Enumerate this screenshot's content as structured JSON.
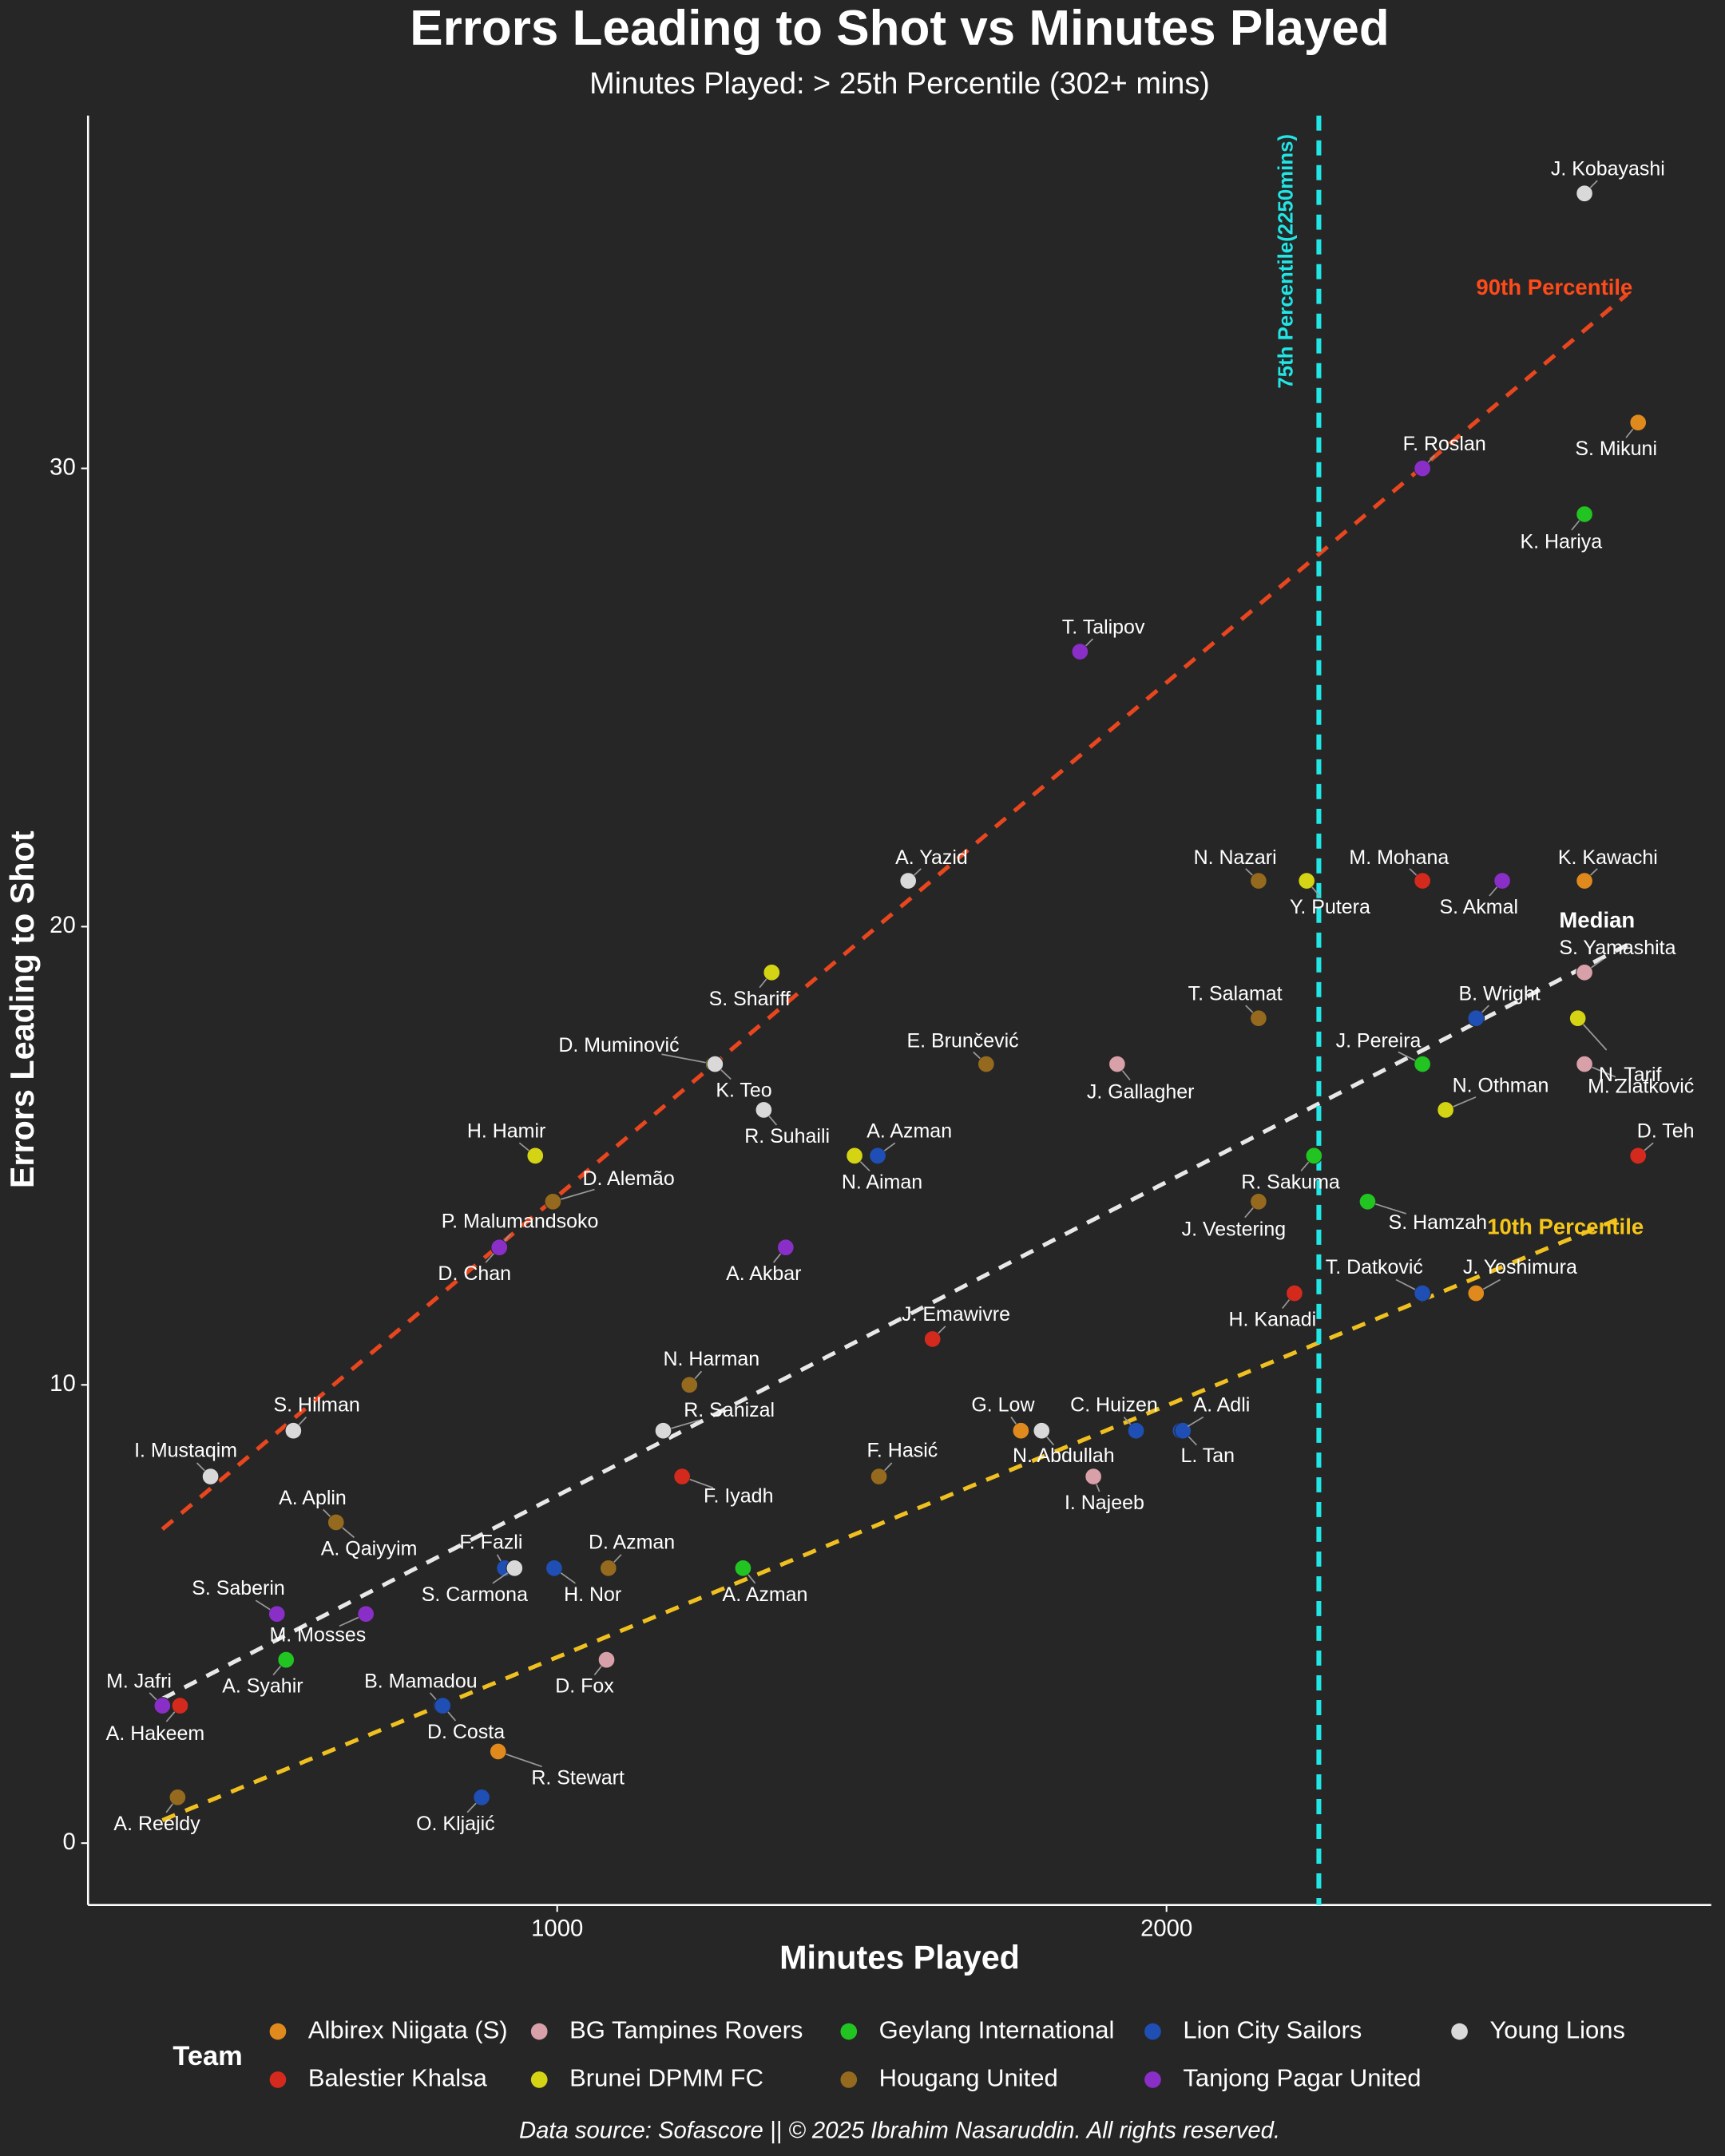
{
  "chart_data": {
    "type": "scatter",
    "title": "Errors Leading to Shot vs Minutes Played",
    "subtitle": "Minutes Played: > 25th Percentile (302+ mins)",
    "xlabel": "Minutes Played",
    "ylabel": "Errors Leading to Shot",
    "xlim": [
      230,
      2894
    ],
    "ylim": [
      -1.35,
      37.7
    ],
    "xticks": [
      1000,
      2000
    ],
    "yticks": [
      0,
      10,
      20,
      30
    ],
    "grid": false,
    "legend_title": "Team",
    "legend_position": "bottom",
    "caption": "Data source: Sofascore || © 2025 Ibrahim Nasaruddin. All rights reserved.",
    "vline": {
      "x": 2250,
      "label": "75th Percentile(2250mins)",
      "color": "#22e5e5"
    },
    "percentile_lines": [
      {
        "name": "90th Percentile",
        "color": "#e8461e",
        "x": [
          352,
          2756
        ],
        "values": [
          6.85,
          33.8
        ]
      },
      {
        "name": "Median",
        "color": "#e8e8e8",
        "x": [
          352,
          2756
        ],
        "values": [
          3.15,
          19.6
        ]
      },
      {
        "name": "10th Percentile",
        "color": "#f0c020",
        "x": [
          352,
          2756
        ],
        "values": [
          0.5,
          13.7
        ]
      }
    ],
    "series": [
      {
        "name": "Albirex Niigata (S)",
        "color": "#e08a1e",
        "labels": [
          "S. Mikuni",
          "K. Kawachi",
          "G. Low",
          "A. Aplin",
          "J. Yoshimura",
          "R. Stewart"
        ],
        "x": [
          2774,
          2686,
          1761,
          637,
          2508,
          903
        ],
        "values": [
          31,
          21,
          9,
          7,
          12,
          2
        ]
      },
      {
        "name": "Balestier Khalsa",
        "color": "#d42a1e",
        "labels": [
          "M. Mohana",
          "D. Teh",
          "H. Kanadi",
          "J. Emawivre",
          "F. Iyadh",
          "A. Hakeem"
        ],
        "x": [
          2420,
          2774,
          2210,
          1616,
          1205,
          381
        ],
        "values": [
          21,
          15,
          12,
          11,
          8,
          3
        ]
      },
      {
        "name": "BG Tampines Rovers",
        "color": "#d8a0a8",
        "labels": [
          "S. Yamashita",
          "J. Gallagher",
          "M. Zlatković",
          "I. Najeeb",
          "D. Fox"
        ],
        "x": [
          2686,
          1919,
          2686,
          1880,
          1081
        ],
        "values": [
          19,
          17,
          17,
          8,
          4
        ]
      },
      {
        "name": "Brunei DPMM FC",
        "color": "#d4d414",
        "labels": [
          "Y. Putera",
          "S. Shariff",
          "N. Tarif",
          "D. Muminović",
          "N. Othman",
          "H. Hamir",
          "N. Aiman"
        ],
        "x": [
          2230,
          1352,
          2675,
          1257,
          2458,
          964,
          1488
        ],
        "values": [
          21,
          19,
          18,
          17,
          16,
          15,
          15
        ]
      },
      {
        "name": "Geylang International",
        "color": "#22c422",
        "labels": [
          "K. Hariya",
          "J. Pereira",
          "R. Sakuma",
          "S. Hamzah",
          "A. Azman",
          "A. Syahir"
        ],
        "x": [
          2686,
          2420,
          2242,
          2330,
          1305,
          555
        ],
        "values": [
          29,
          17,
          15,
          14,
          6,
          4
        ]
      },
      {
        "name": "Hougang United",
        "color": "#956a1e",
        "labels": [
          "N. Nazari",
          "T. Salamat",
          "E. Brunčević",
          "D. Alemão",
          "J. Vestering",
          "N. Harman",
          "F. Hasić",
          "A. Qaiyyim",
          "D. Azman",
          "A. Reeldy"
        ],
        "x": [
          2151,
          2151,
          1704,
          993,
          2151,
          1217,
          1528,
          637,
          1084,
          377
        ],
        "values": [
          21,
          18,
          17,
          14,
          14,
          10,
          8,
          7,
          6,
          1
        ]
      },
      {
        "name": "Lion City Sailors",
        "color": "#1f4fb4",
        "labels": [
          "B. Wright",
          "A. Azman",
          "T. Datković",
          "C. Huizen",
          "A. Adli",
          "L. Tan",
          "F. Fazli",
          "H. Nor",
          "B. Mamadou",
          "D. Costa",
          "O. Kljajić"
        ],
        "x": [
          2508,
          1526,
          2420,
          1950,
          2023,
          2027,
          914,
          995,
          810,
          812,
          876
        ],
        "values": [
          18,
          15,
          12,
          9,
          9,
          9,
          6,
          6,
          3,
          3,
          1
        ]
      },
      {
        "name": "Tanjong Pagar United",
        "color": "#8a2ec8",
        "labels": [
          "F. Roslan",
          "T. Talipov",
          "S. Akmal",
          "P. Malumandsoko",
          "D. Chan",
          "A. Akbar",
          "S. Saberin",
          "M. Mosses",
          "M. Jafri"
        ],
        "x": [
          2420,
          1858,
          2551,
          905,
          905,
          1375,
          540,
          686,
          352
        ],
        "values": [
          30,
          26,
          21,
          13,
          13,
          13,
          5,
          5,
          3
        ]
      },
      {
        "name": "Young Lions",
        "color": "#d9d9d9",
        "labels": [
          "J. Kobayashi",
          "A. Yazid",
          "K. Teo",
          "R. Suhaili",
          "S. Hilman",
          "R. Sanizal",
          "N. Abdullah",
          "I. Mustaqim",
          "S. Carmona"
        ],
        "x": [
          2686,
          1576,
          1259,
          1339,
          567,
          1174,
          1795,
          431,
          930
        ],
        "values": [
          36,
          21,
          17,
          16,
          9,
          9,
          9,
          8,
          6
        ]
      }
    ]
  }
}
